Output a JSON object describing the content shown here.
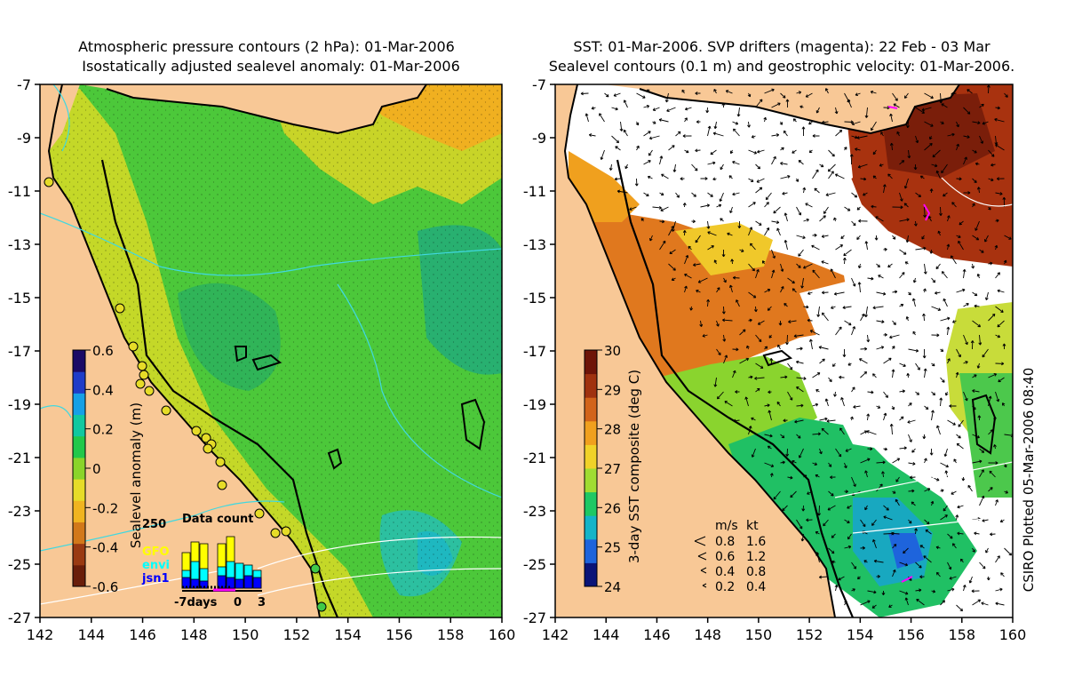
{
  "left_panel": {
    "title_line1": "Atmospheric pressure contours (2 hPa): 01-Mar-2006",
    "title_line2": "Isostatically adjusted sealevel anomaly: 01-Mar-2006",
    "colorbar_label": "Sealevel anomaly (m)",
    "colorbar_ticks": [
      "0.6",
      "0.4",
      "0.2",
      "0",
      "-0.2",
      "-0.4",
      "-0.6"
    ],
    "colorbar_colors": [
      "#1a0a66",
      "#1e3cc8",
      "#16a0e6",
      "#10c8a0",
      "#22c84a",
      "#8ad42a",
      "#e6dc28",
      "#f0b420",
      "#d2781a",
      "#9a3a12",
      "#6a1e0a"
    ],
    "inset": {
      "title": "Data count",
      "max_label": "250",
      "legend": [
        {
          "label": "GFO",
          "color": "#ffff00"
        },
        {
          "label": "envi",
          "color": "#00ffff"
        },
        {
          "label": "jsn1",
          "color": "#0000ff"
        }
      ],
      "x_labels": [
        "-7days",
        "0",
        "3"
      ]
    }
  },
  "right_panel": {
    "title_line1": "SST: 01-Mar-2006. SVP drifters (magenta): 22 Feb - 03 Mar",
    "title_line2": "Sealevel contours (0.1 m) and geostrophic velocity: 01-Mar-2006.",
    "colorbar_label": "3-day SST composite (deg C)",
    "colorbar_ticks": [
      "30",
      "29",
      "28",
      "27",
      "26",
      "25",
      "24"
    ],
    "colorbar_colors": [
      "#0a1478",
      "#1e64dc",
      "#14b4c8",
      "#1ec864",
      "#a0dc32",
      "#f0d228",
      "#f0a01e",
      "#d2641a",
      "#a0320f",
      "#6e1408"
    ],
    "velocity_legend": {
      "header_ms": "m/s",
      "header_kt": "kt",
      "rows": [
        {
          "ms": "0.8",
          "kt": "1.6"
        },
        {
          "ms": "0.6",
          "kt": "1.2"
        },
        {
          "ms": "0.4",
          "kt": "0.8"
        },
        {
          "ms": "0.2",
          "kt": "0.4"
        }
      ]
    }
  },
  "axes": {
    "x_ticks": [
      "142",
      "144",
      "146",
      "148",
      "150",
      "152",
      "154",
      "156",
      "158",
      "160"
    ],
    "y_ticks": [
      "-7",
      "-9",
      "-11",
      "-13",
      "-15",
      "-17",
      "-19",
      "-21",
      "-23",
      "-25",
      "-27"
    ]
  },
  "credit": "CSIRO Plotted 05-Mar-2006 08:40",
  "colors": {
    "land": "#f8c896",
    "coast": "#000000",
    "pressure_contour": "#40d8e0",
    "sealevel_contour": "#ffffff",
    "drifter": "#ff00ff"
  }
}
